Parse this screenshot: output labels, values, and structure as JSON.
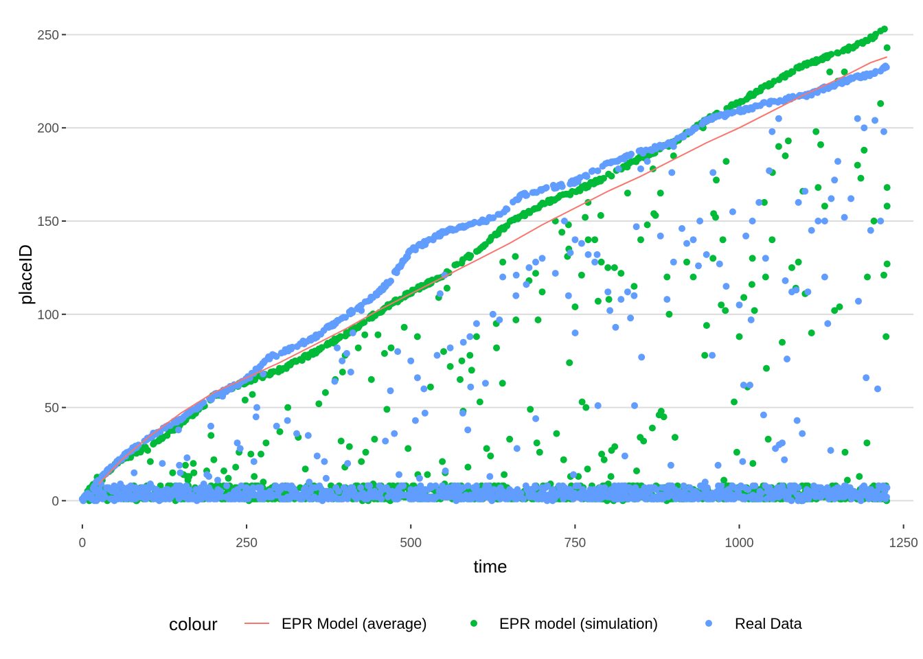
{
  "chart_data": {
    "type": "scatter",
    "xlabel": "time",
    "ylabel": "placeID",
    "xlim": [
      -25,
      1265
    ],
    "ylim": [
      -12,
      259
    ],
    "x_ticks": [
      0,
      250,
      500,
      750,
      1000,
      1250
    ],
    "y_ticks": [
      0,
      50,
      100,
      150,
      200,
      250
    ],
    "x_tick_labels": [
      "0",
      "250",
      "500",
      "750",
      "1000",
      "1250"
    ],
    "y_tick_labels": [
      "0",
      "50",
      "100",
      "150",
      "200",
      "250"
    ],
    "grid": "horizontal major",
    "legend": {
      "title": "colour",
      "placement": "bottom",
      "entries": [
        {
          "label": "EPR Model (average)",
          "kind": "line",
          "color": "#F8766D"
        },
        {
          "label": "EPR model (simulation)",
          "kind": "point",
          "color": "#00BA38"
        },
        {
          "label": "Real Data",
          "kind": "point",
          "color": "#619CFF"
        }
      ]
    },
    "series": [
      {
        "name": "EPR Model (average)",
        "kind": "line",
        "color": "#F8766D",
        "points": [
          [
            25,
            9
          ],
          [
            60,
            22
          ],
          [
            100,
            34
          ],
          [
            150,
            47
          ],
          [
            200,
            58
          ],
          [
            250,
            66
          ],
          [
            300,
            74
          ],
          [
            350,
            83
          ],
          [
            400,
            92
          ],
          [
            450,
            102
          ],
          [
            500,
            111
          ],
          [
            550,
            120
          ],
          [
            600,
            129
          ],
          [
            650,
            138
          ],
          [
            700,
            148
          ],
          [
            750,
            157
          ],
          [
            800,
            166
          ],
          [
            850,
            174
          ],
          [
            900,
            183
          ],
          [
            950,
            192
          ],
          [
            1000,
            200
          ],
          [
            1050,
            209
          ],
          [
            1100,
            218
          ],
          [
            1150,
            226
          ],
          [
            1200,
            235
          ],
          [
            1225,
            238
          ]
        ]
      },
      {
        "name": "EPR model (simulation)",
        "kind": "point",
        "color": "#00BA38",
        "envelope": [
          [
            0,
            1
          ],
          [
            20,
            12
          ],
          [
            50,
            20
          ],
          [
            100,
            30
          ],
          [
            150,
            42
          ],
          [
            200,
            57
          ],
          [
            250,
            65
          ],
          [
            300,
            71
          ],
          [
            350,
            80
          ],
          [
            400,
            90
          ],
          [
            450,
            102
          ],
          [
            500,
            113
          ],
          [
            550,
            122
          ],
          [
            600,
            135
          ],
          [
            650,
            150
          ],
          [
            700,
            160
          ],
          [
            750,
            167
          ],
          [
            800,
            175
          ],
          [
            850,
            185
          ],
          [
            900,
            193
          ],
          [
            950,
            205
          ],
          [
            1000,
            215
          ],
          [
            1050,
            225
          ],
          [
            1100,
            235
          ],
          [
            1150,
            241
          ],
          [
            1200,
            249
          ],
          [
            1225,
            254
          ]
        ],
        "highlights": [
          [
            1225,
            243
          ],
          [
            1225,
            168
          ],
          [
            1225,
            158
          ],
          [
            1225,
            127
          ],
          [
            1220,
            121
          ],
          [
            1215,
            213
          ],
          [
            1205,
            150
          ],
          [
            1195,
            120
          ],
          [
            1190,
            188
          ],
          [
            1185,
            173
          ],
          [
            1180,
            180
          ],
          [
            1160,
            230
          ],
          [
            1150,
            225
          ],
          [
            1130,
            158
          ],
          [
            1120,
            168
          ],
          [
            1110,
            90
          ],
          [
            1090,
            128
          ],
          [
            1080,
            125
          ],
          [
            1070,
            185
          ],
          [
            1060,
            190
          ],
          [
            1050,
            140
          ],
          [
            1040,
            120
          ],
          [
            1020,
            130
          ],
          [
            1000,
            88
          ],
          [
            980,
            182
          ],
          [
            975,
            140
          ],
          [
            965,
            172
          ],
          [
            960,
            130
          ],
          [
            945,
            200
          ],
          [
            930,
            120
          ],
          [
            920,
            128
          ],
          [
            900,
            185
          ],
          [
            890,
            120
          ],
          [
            880,
            165
          ],
          [
            870,
            154
          ],
          [
            860,
            148
          ],
          [
            850,
            140
          ],
          [
            840,
            115
          ],
          [
            830,
            165
          ],
          [
            820,
            122
          ],
          [
            810,
            125
          ],
          [
            800,
            125
          ],
          [
            790,
            128
          ],
          [
            780,
            140
          ],
          [
            770,
            140
          ],
          [
            760,
            121
          ],
          [
            750,
            104
          ],
          [
            740,
            148
          ],
          [
            730,
            144
          ],
          [
            720,
            150
          ],
          [
            700,
            112
          ],
          [
            690,
            122
          ],
          [
            680,
            118
          ],
          [
            660,
            97
          ],
          [
            640,
            128
          ],
          [
            630,
            95
          ],
          [
            600,
            88
          ],
          [
            590,
            78
          ],
          [
            575,
            65
          ],
          [
            560,
            72
          ],
          [
            550,
            80
          ],
          [
            530,
            61
          ],
          [
            510,
            88
          ],
          [
            490,
            93
          ],
          [
            470,
            82
          ],
          [
            460,
            79
          ],
          [
            450,
            89
          ],
          [
            440,
            65
          ],
          [
            430,
            89
          ],
          [
            420,
            82
          ],
          [
            400,
            78
          ],
          [
            385,
            65
          ],
          [
            370,
            58
          ],
          [
            360,
            52
          ]
        ]
      },
      {
        "name": "Real Data",
        "kind": "point",
        "color": "#619CFF",
        "envelope": [
          [
            0,
            1
          ],
          [
            30,
            14
          ],
          [
            60,
            24
          ],
          [
            100,
            35
          ],
          [
            150,
            45
          ],
          [
            200,
            57
          ],
          [
            250,
            66
          ],
          [
            280,
            77
          ],
          [
            300,
            80
          ],
          [
            350,
            88
          ],
          [
            400,
            100
          ],
          [
            450,
            112
          ],
          [
            470,
            120
          ],
          [
            500,
            135
          ],
          [
            550,
            145
          ],
          [
            600,
            150
          ],
          [
            630,
            153
          ],
          [
            670,
            165
          ],
          [
            700,
            168
          ],
          [
            750,
            172
          ],
          [
            780,
            178
          ],
          [
            800,
            182
          ],
          [
            850,
            188
          ],
          [
            900,
            193
          ],
          [
            950,
            205
          ],
          [
            1000,
            210
          ],
          [
            1050,
            215
          ],
          [
            1100,
            218
          ],
          [
            1150,
            225
          ],
          [
            1200,
            230
          ],
          [
            1225,
            234
          ]
        ],
        "highlights": [
          [
            1220,
            198
          ],
          [
            1215,
            150
          ],
          [
            1200,
            145
          ],
          [
            1190,
            200
          ],
          [
            1180,
            205
          ],
          [
            1170,
            162
          ],
          [
            1160,
            152
          ],
          [
            1150,
            182
          ],
          [
            1145,
            172
          ],
          [
            1140,
            162
          ],
          [
            1130,
            120
          ],
          [
            1120,
            150
          ],
          [
            1110,
            145
          ],
          [
            1100,
            166
          ],
          [
            1090,
            160
          ],
          [
            1080,
            112
          ],
          [
            1070,
            118
          ],
          [
            1060,
            205
          ],
          [
            1050,
            198
          ],
          [
            1040,
            130
          ],
          [
            1030,
            160
          ],
          [
            1020,
            150
          ],
          [
            1010,
            142
          ],
          [
            1000,
            105
          ],
          [
            990,
            155
          ],
          [
            980,
            115
          ],
          [
            970,
            127
          ],
          [
            960,
            176
          ],
          [
            950,
            132
          ],
          [
            940,
            150
          ],
          [
            930,
            140
          ],
          [
            920,
            138
          ],
          [
            900,
            128
          ],
          [
            890,
            108
          ],
          [
            880,
            142
          ],
          [
            860,
            182
          ],
          [
            850,
            178
          ],
          [
            840,
            110
          ],
          [
            830,
            112
          ],
          [
            820,
            108
          ],
          [
            800,
            112
          ],
          [
            780,
            128
          ],
          [
            770,
            132
          ],
          [
            760,
            138
          ],
          [
            750,
            140
          ],
          [
            740,
            110
          ],
          [
            720,
            122
          ],
          [
            700,
            130
          ],
          [
            690,
            128
          ],
          [
            680,
            125
          ],
          [
            660,
            110
          ],
          [
            640,
            120
          ],
          [
            625,
            100
          ],
          [
            600,
            95
          ],
          [
            590,
            88
          ],
          [
            580,
            85
          ],
          [
            560,
            82
          ],
          [
            540,
            78
          ],
          [
            520,
            60
          ],
          [
            500,
            75
          ],
          [
            480,
            80
          ]
        ]
      }
    ]
  }
}
